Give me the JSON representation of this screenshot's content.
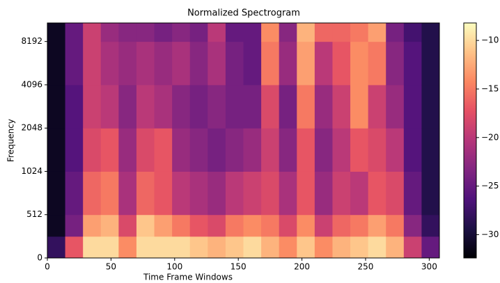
{
  "chart_data": {
    "type": "heatmap",
    "title": "Normalized Spectrogram",
    "x_label": "Time Frame Windows",
    "y_label": "Frequency",
    "xlim": [
      0,
      308
    ],
    "xticks": [
      0,
      50,
      100,
      150,
      200,
      250,
      300
    ],
    "ylim": [
      0,
      11025
    ],
    "yticks": [
      0,
      512,
      1024,
      2048,
      4096,
      8192
    ],
    "yscale": "symlog",
    "linthresh": 512,
    "colormap": "magma",
    "clim": [
      -32.4,
      -8.2
    ],
    "cticks": [
      {
        "value": -30,
        "label": "−30"
      },
      {
        "value": -25,
        "label": "−25"
      },
      {
        "value": -20,
        "label": "−20"
      },
      {
        "value": -15,
        "label": "−15"
      },
      {
        "value": -10,
        "label": "−10"
      }
    ],
    "x_edges": [
      0,
      14,
      28,
      42,
      56,
      70,
      84,
      98,
      112,
      126,
      140,
      154,
      168,
      182,
      196,
      210,
      224,
      238,
      252,
      266,
      280,
      294,
      308
    ],
    "y_edges": [
      0,
      256,
      512,
      1024,
      2048,
      4096,
      8192,
      11025
    ],
    "z": [
      [
        -28,
        -31,
        -31,
        -31,
        -31,
        -31,
        -31
      ],
      [
        -17,
        -24,
        -25,
        -26,
        -26,
        -25,
        -25
      ],
      [
        -10,
        -13,
        -16,
        -18,
        -19,
        -19,
        -19
      ],
      [
        -10,
        -12,
        -15,
        -17,
        -20,
        -21,
        -22
      ],
      [
        -14,
        -18,
        -21,
        -22,
        -23,
        -22,
        -23
      ],
      [
        -10,
        -11,
        -16,
        -18,
        -20,
        -21,
        -23
      ],
      [
        -10,
        -13,
        -17,
        -17,
        -21,
        -22,
        -24
      ],
      [
        -10,
        -15,
        -20,
        -22,
        -23,
        -21,
        -23
      ],
      [
        -11,
        -17,
        -21,
        -23,
        -24,
        -23,
        -24
      ],
      [
        -12,
        -18,
        -22,
        -24,
        -23,
        -21,
        -20
      ],
      [
        -11,
        -15,
        -20,
        -23,
        -24,
        -24,
        -25
      ],
      [
        -10,
        -14,
        -19,
        -22,
        -24,
        -25,
        -25
      ],
      [
        -12,
        -15,
        -18,
        -19,
        -18,
        -15,
        -14
      ],
      [
        -14,
        -18,
        -21,
        -23,
        -24,
        -22,
        -23
      ],
      [
        -11,
        -14,
        -17,
        -17,
        -15,
        -13,
        -12
      ],
      [
        -14,
        -19,
        -22,
        -23,
        -22,
        -20,
        -16
      ],
      [
        -12,
        -16,
        -19,
        -20,
        -19,
        -17,
        -16
      ],
      [
        -11,
        -15,
        -20,
        -17,
        -14,
        -14,
        -15
      ],
      [
        -10,
        -13,
        -17,
        -18,
        -19,
        -15,
        -13
      ],
      [
        -12,
        -15,
        -18,
        -20,
        -22,
        -23,
        -24
      ],
      [
        -19,
        -23,
        -25,
        -26,
        -26,
        -26,
        -27
      ],
      [
        -25,
        -28,
        -29,
        -29,
        -29,
        -29,
        -29
      ]
    ]
  }
}
